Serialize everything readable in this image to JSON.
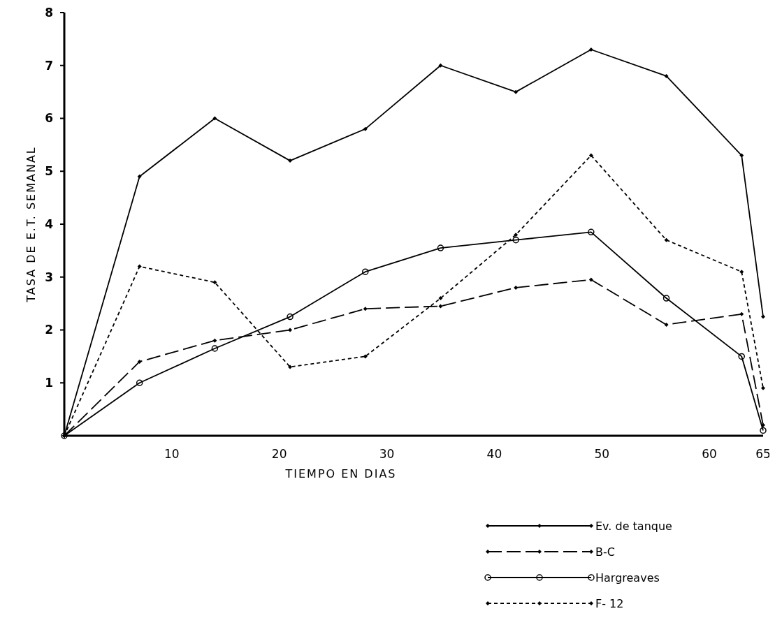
{
  "chart_data": {
    "type": "line",
    "xlabel": "TIEMPO EN DIAS",
    "ylabel": "TASA DE E.T. SEMANAL",
    "x": [
      0,
      7,
      14,
      21,
      28,
      35,
      42,
      49,
      56,
      63,
      65
    ],
    "series": [
      {
        "name": "Ev. de tanque",
        "color": "#000000",
        "marker": "diamond",
        "line_style": "solid",
        "values": [
          0,
          4.9,
          6.0,
          5.2,
          5.8,
          7.0,
          6.5,
          7.3,
          6.8,
          5.3,
          2.25
        ]
      },
      {
        "name": "B-C",
        "color": "#000000",
        "marker": "diamond",
        "line_style": "dashed",
        "values": [
          0,
          1.4,
          1.8,
          2.0,
          2.4,
          2.45,
          2.8,
          2.95,
          2.1,
          2.3,
          0.2
        ]
      },
      {
        "name": "Hargreaves",
        "color": "#000000",
        "marker": "circle",
        "line_style": "solid",
        "values": [
          0,
          1.0,
          1.65,
          2.25,
          3.1,
          3.55,
          3.7,
          3.85,
          2.6,
          1.5,
          0.1
        ]
      },
      {
        "name": "F- 12",
        "color": "#000000",
        "marker": "diamond",
        "line_style": "dotted",
        "values": [
          0,
          3.2,
          2.9,
          1.3,
          1.5,
          2.6,
          3.8,
          5.3,
          3.7,
          3.1,
          0.9
        ]
      }
    ],
    "xlim": [
      0,
      65
    ],
    "xticks": [
      10,
      20,
      30,
      40,
      50,
      60,
      65
    ],
    "ylim": [
      0,
      8
    ],
    "yticks": [
      1,
      2,
      3,
      4,
      5,
      6,
      7,
      8
    ],
    "grid": false,
    "legend": "bottom right"
  }
}
